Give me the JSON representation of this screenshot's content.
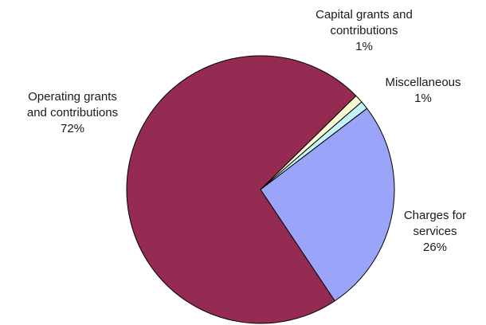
{
  "chart_data": {
    "type": "pie",
    "slices": [
      {
        "label_lines": [
          "Operating grants",
          "and contributions"
        ],
        "percent_label": "72%",
        "value": 72,
        "color": "#952a52"
      },
      {
        "label_lines": [
          "Capital grants and",
          "contributions"
        ],
        "percent_label": "1%",
        "value": 1,
        "color": "#fdfbd2"
      },
      {
        "label_lines": [
          "Miscellaneous"
        ],
        "percent_label": "1%",
        "value": 1,
        "color": "#c6f2fb"
      },
      {
        "label_lines": [
          "Charges for",
          "services"
        ],
        "percent_label": "26%",
        "value": 26,
        "color": "#9aa4f8"
      }
    ],
    "outline_color": "#000000",
    "legend": "none"
  }
}
